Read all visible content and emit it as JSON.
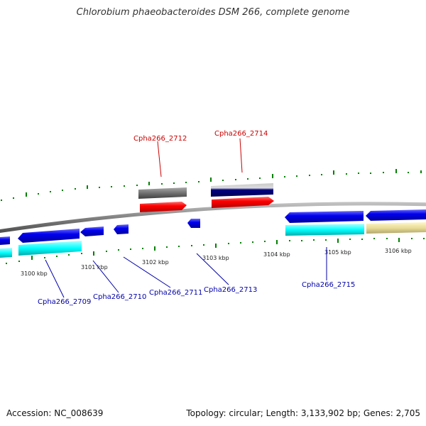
{
  "title": "Chlorobium phaeobacteroides DSM 266, complete genome",
  "footer": {
    "accession": "Accession: NC_008639",
    "summary": "Topology: circular; Length: 3,133,902 bp; Genes: 2,705"
  },
  "colors": {
    "backbone": "#8a8a8a",
    "forward_cds": "#ff0000",
    "reverse_cds": "#0000ee",
    "cyan_feature": "#00ffff",
    "khaki_feature": "#e8dc96",
    "gray_feature": "#707070",
    "navy_feature": "#000080",
    "tick_green": "#008000",
    "label_red": "#cc0000",
    "label_blue": "#0000aa"
  },
  "kbp_ticks": [
    "3100 kbp",
    "3101 kbp",
    "3102 kbp",
    "3103 kbp",
    "3104 kbp",
    "3105 kbp",
    "3106 kbp"
  ],
  "gene_labels": [
    {
      "text": "Cpha266_2712",
      "strand": "forward"
    },
    {
      "text": "Cpha266_2714",
      "strand": "forward"
    },
    {
      "text": "Cpha266_2709",
      "strand": "reverse"
    },
    {
      "text": "Cpha266_2710",
      "strand": "reverse"
    },
    {
      "text": "Cpha266_2711",
      "strand": "reverse"
    },
    {
      "text": "Cpha266_2713",
      "strand": "reverse"
    },
    {
      "text": "Cpha266_2715",
      "strand": "reverse"
    }
  ]
}
